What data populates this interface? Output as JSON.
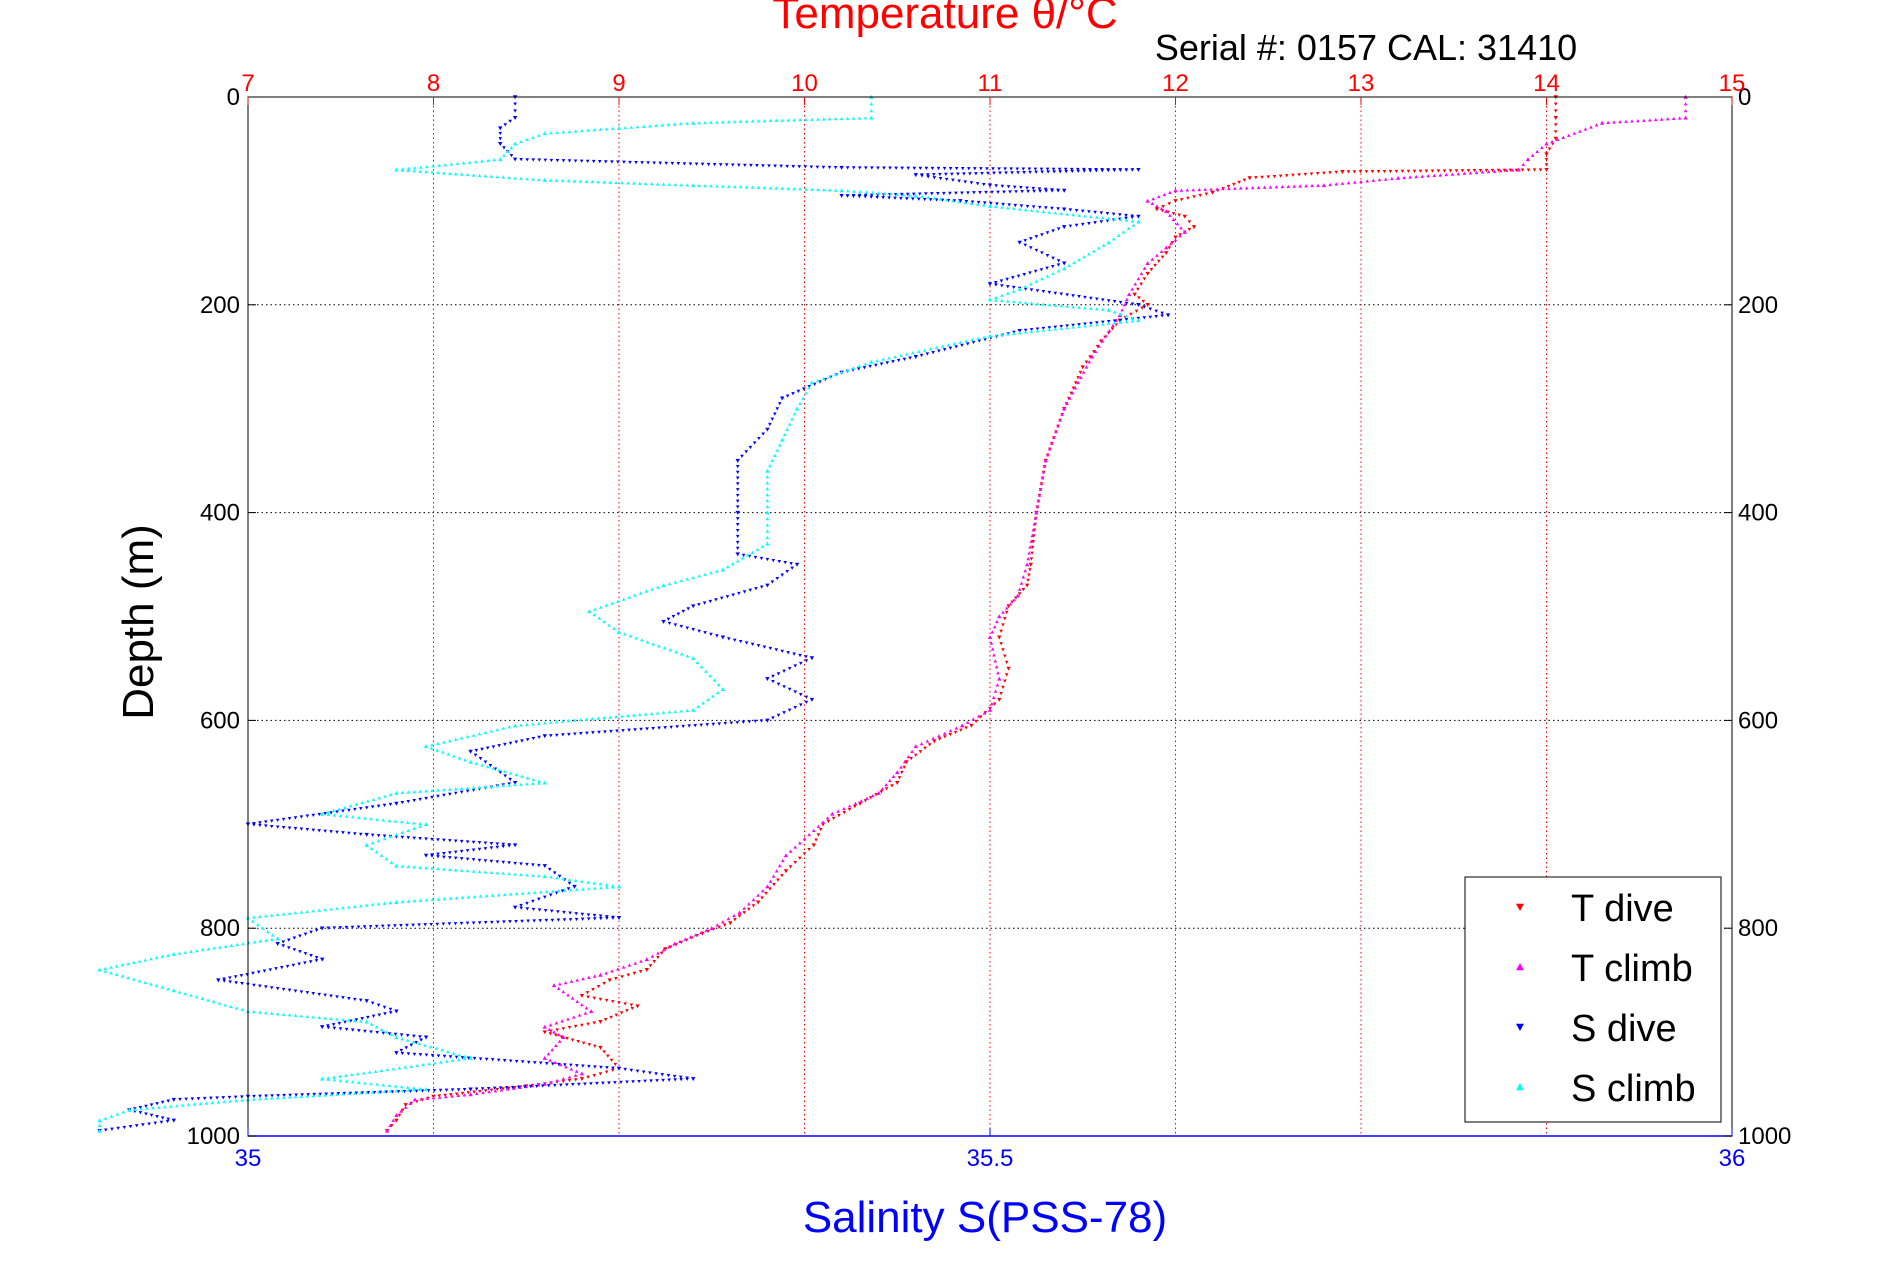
{
  "chart_data": {
    "type": "scatter",
    "title": "Temperature θ/°C",
    "subtitle": "Serial #: 0157  CAL: 31410",
    "xlabel_bottom": "Salinity S(PSS-78)",
    "xlabel_top": "",
    "ylabel": "Depth (m)",
    "y_axis": {
      "range": [
        0,
        1000
      ],
      "inverted": true,
      "ticks": [
        0,
        200,
        400,
        600,
        800,
        1000
      ],
      "tick_labels": [
        "0",
        "200",
        "400",
        "600",
        "800",
        "1000"
      ]
    },
    "x_top_axis": {
      "quantity": "temperature",
      "range": [
        7,
        15
      ],
      "ticks": [
        7,
        8,
        9,
        10,
        11,
        12,
        13,
        14,
        15
      ],
      "tick_labels": [
        "7",
        "8",
        "9",
        "10",
        "11",
        "12",
        "13",
        "14",
        "15"
      ]
    },
    "x_bottom_axis": {
      "quantity": "salinity",
      "range": [
        35,
        36
      ],
      "ticks": [
        35,
        35.5,
        36
      ],
      "tick_labels": [
        "35",
        "35.5",
        "36"
      ]
    },
    "grid": true,
    "legend_position": "bottom-right",
    "series": [
      {
        "name": "T dive",
        "axis": "top",
        "color": "#ff0000",
        "marker": "triangle-down",
        "points": [
          [
            14.05,
            0
          ],
          [
            14.05,
            20
          ],
          [
            14.05,
            40
          ],
          [
            14.0,
            55
          ],
          [
            14.0,
            70
          ],
          [
            12.9,
            72
          ],
          [
            12.4,
            78
          ],
          [
            12.2,
            92
          ],
          [
            12.0,
            100
          ],
          [
            11.9,
            108
          ],
          [
            12.05,
            115
          ],
          [
            12.1,
            125
          ],
          [
            12.0,
            135
          ],
          [
            11.95,
            150
          ],
          [
            11.85,
            170
          ],
          [
            11.78,
            190
          ],
          [
            11.85,
            200
          ],
          [
            11.7,
            215
          ],
          [
            11.6,
            235
          ],
          [
            11.5,
            260
          ],
          [
            11.4,
            300
          ],
          [
            11.3,
            350
          ],
          [
            11.25,
            400
          ],
          [
            11.22,
            450
          ],
          [
            11.2,
            470
          ],
          [
            11.1,
            490
          ],
          [
            11.05,
            520
          ],
          [
            11.1,
            550
          ],
          [
            11.05,
            580
          ],
          [
            10.9,
            605
          ],
          [
            10.7,
            620
          ],
          [
            10.55,
            640
          ],
          [
            10.5,
            660
          ],
          [
            10.3,
            680
          ],
          [
            10.1,
            700
          ],
          [
            10.05,
            720
          ],
          [
            9.9,
            745
          ],
          [
            9.75,
            775
          ],
          [
            9.6,
            795
          ],
          [
            9.45,
            805
          ],
          [
            9.25,
            820
          ],
          [
            9.15,
            840
          ],
          [
            8.95,
            850
          ],
          [
            8.8,
            865
          ],
          [
            9.1,
            875
          ],
          [
            8.9,
            890
          ],
          [
            8.6,
            900
          ],
          [
            8.9,
            915
          ],
          [
            9.0,
            935
          ],
          [
            8.8,
            945
          ],
          [
            8.5,
            952
          ],
          [
            8.0,
            962
          ],
          [
            7.85,
            970
          ],
          [
            7.8,
            985
          ],
          [
            7.75,
            995
          ]
        ]
      },
      {
        "name": "T climb",
        "axis": "top",
        "color": "#ff00ff",
        "marker": "triangle-up",
        "points": [
          [
            14.75,
            0
          ],
          [
            14.75,
            20
          ],
          [
            14.3,
            25
          ],
          [
            14.0,
            45
          ],
          [
            13.9,
            60
          ],
          [
            13.85,
            70
          ],
          [
            13.2,
            78
          ],
          [
            12.8,
            85
          ],
          [
            12.0,
            90
          ],
          [
            11.85,
            100
          ],
          [
            11.95,
            110
          ],
          [
            12.05,
            130
          ],
          [
            11.95,
            145
          ],
          [
            11.85,
            160
          ],
          [
            11.75,
            190
          ],
          [
            11.7,
            210
          ],
          [
            11.55,
            250
          ],
          [
            11.4,
            300
          ],
          [
            11.3,
            350
          ],
          [
            11.25,
            400
          ],
          [
            11.2,
            450
          ],
          [
            11.15,
            480
          ],
          [
            11.05,
            500
          ],
          [
            11.0,
            520
          ],
          [
            11.05,
            560
          ],
          [
            11.0,
            590
          ],
          [
            10.85,
            605
          ],
          [
            10.6,
            625
          ],
          [
            10.5,
            650
          ],
          [
            10.4,
            670
          ],
          [
            10.15,
            690
          ],
          [
            9.9,
            730
          ],
          [
            9.8,
            760
          ],
          [
            9.65,
            785
          ],
          [
            9.5,
            800
          ],
          [
            9.3,
            815
          ],
          [
            9.15,
            830
          ],
          [
            8.9,
            845
          ],
          [
            8.65,
            855
          ],
          [
            8.85,
            880
          ],
          [
            8.6,
            895
          ],
          [
            8.7,
            905
          ],
          [
            8.6,
            925
          ],
          [
            8.8,
            940
          ],
          [
            8.6,
            950
          ],
          [
            8.2,
            960
          ],
          [
            7.9,
            965
          ],
          [
            7.8,
            980
          ],
          [
            7.75,
            995
          ]
        ]
      },
      {
        "name": "S dive",
        "axis": "bottom",
        "color": "#0000ff",
        "marker": "triangle-down",
        "points": [
          [
            35.18,
            0
          ],
          [
            35.18,
            20
          ],
          [
            35.17,
            30
          ],
          [
            35.17,
            45
          ],
          [
            35.18,
            60
          ],
          [
            35.4,
            68
          ],
          [
            35.6,
            70
          ],
          [
            35.45,
            75
          ],
          [
            35.5,
            85
          ],
          [
            35.55,
            90
          ],
          [
            35.4,
            95
          ],
          [
            35.48,
            100
          ],
          [
            35.55,
            108
          ],
          [
            35.6,
            115
          ],
          [
            35.55,
            125
          ],
          [
            35.52,
            140
          ],
          [
            35.55,
            160
          ],
          [
            35.5,
            180
          ],
          [
            35.6,
            200
          ],
          [
            35.62,
            210
          ],
          [
            35.52,
            225
          ],
          [
            35.45,
            250
          ],
          [
            35.4,
            265
          ],
          [
            35.36,
            290
          ],
          [
            35.35,
            320
          ],
          [
            35.33,
            350
          ],
          [
            35.33,
            400
          ],
          [
            35.33,
            440
          ],
          [
            35.37,
            450
          ],
          [
            35.35,
            470
          ],
          [
            35.3,
            490
          ],
          [
            35.28,
            505
          ],
          [
            35.32,
            520
          ],
          [
            35.38,
            540
          ],
          [
            35.35,
            560
          ],
          [
            35.38,
            580
          ],
          [
            35.35,
            600
          ],
          [
            35.2,
            615
          ],
          [
            35.15,
            630
          ],
          [
            35.18,
            660
          ],
          [
            35.1,
            680
          ],
          [
            35.0,
            700
          ],
          [
            35.08,
            710
          ],
          [
            35.18,
            720
          ],
          [
            35.12,
            730
          ],
          [
            35.2,
            740
          ],
          [
            35.22,
            760
          ],
          [
            35.18,
            780
          ],
          [
            35.25,
            790
          ],
          [
            35.05,
            800
          ],
          [
            35.02,
            815
          ],
          [
            35.05,
            830
          ],
          [
            34.98,
            850
          ],
          [
            35.08,
            870
          ],
          [
            35.1,
            880
          ],
          [
            35.05,
            895
          ],
          [
            35.12,
            905
          ],
          [
            35.1,
            920
          ],
          [
            35.25,
            935
          ],
          [
            35.3,
            945
          ],
          [
            35.15,
            955
          ],
          [
            35.0,
            962
          ],
          [
            34.95,
            965
          ],
          [
            34.92,
            975
          ],
          [
            34.95,
            985
          ],
          [
            34.9,
            995
          ]
        ]
      },
      {
        "name": "S climb",
        "axis": "bottom",
        "color": "#00ffff",
        "marker": "triangle-up",
        "points": [
          [
            35.42,
            0
          ],
          [
            35.42,
            20
          ],
          [
            35.3,
            25
          ],
          [
            35.25,
            30
          ],
          [
            35.2,
            35
          ],
          [
            35.18,
            45
          ],
          [
            35.17,
            60
          ],
          [
            35.1,
            70
          ],
          [
            35.2,
            80
          ],
          [
            35.3,
            85
          ],
          [
            35.4,
            90
          ],
          [
            35.45,
            95
          ],
          [
            35.5,
            105
          ],
          [
            35.6,
            120
          ],
          [
            35.58,
            140
          ],
          [
            35.55,
            165
          ],
          [
            35.52,
            185
          ],
          [
            35.5,
            195
          ],
          [
            35.58,
            205
          ],
          [
            35.6,
            215
          ],
          [
            35.5,
            230
          ],
          [
            35.42,
            255
          ],
          [
            35.38,
            275
          ],
          [
            35.37,
            300
          ],
          [
            35.36,
            330
          ],
          [
            35.35,
            360
          ],
          [
            35.35,
            400
          ],
          [
            35.35,
            430
          ],
          [
            35.32,
            455
          ],
          [
            35.28,
            470
          ],
          [
            35.23,
            495
          ],
          [
            35.25,
            515
          ],
          [
            35.3,
            540
          ],
          [
            35.32,
            570
          ],
          [
            35.3,
            590
          ],
          [
            35.18,
            605
          ],
          [
            35.12,
            625
          ],
          [
            35.15,
            640
          ],
          [
            35.2,
            660
          ],
          [
            35.1,
            670
          ],
          [
            35.05,
            690
          ],
          [
            35.12,
            700
          ],
          [
            35.08,
            720
          ],
          [
            35.1,
            740
          ],
          [
            35.2,
            750
          ],
          [
            35.25,
            760
          ],
          [
            35.1,
            775
          ],
          [
            35.0,
            790
          ],
          [
            35.02,
            810
          ],
          [
            34.95,
            825
          ],
          [
            34.9,
            840
          ],
          [
            34.95,
            860
          ],
          [
            35.0,
            880
          ],
          [
            35.08,
            890
          ],
          [
            35.1,
            905
          ],
          [
            35.15,
            925
          ],
          [
            35.05,
            945
          ],
          [
            35.12,
            955
          ],
          [
            35.0,
            965
          ],
          [
            34.92,
            975
          ],
          [
            34.9,
            985
          ],
          [
            34.9,
            995
          ]
        ]
      }
    ]
  }
}
